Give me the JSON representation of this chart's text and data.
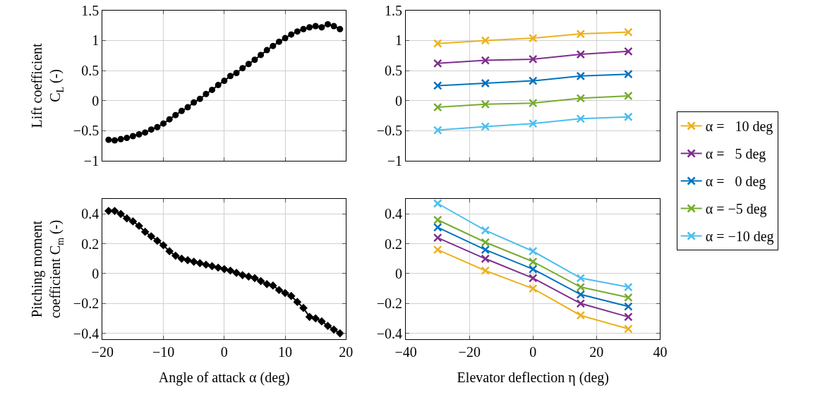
{
  "chart_data": [
    {
      "type": "line",
      "x": [
        -19,
        -18,
        -17,
        -16,
        -15,
        -14,
        -13,
        -12,
        -11,
        -10,
        -9,
        -8,
        -7,
        -6,
        -5,
        -4,
        -3,
        -2,
        -1,
        0,
        1,
        2,
        3,
        4,
        5,
        6,
        7,
        8,
        9,
        10,
        11,
        12,
        13,
        14,
        15,
        16,
        17,
        18,
        19
      ],
      "ylabel": "Lift coefficient\nC$_{L}$ (-)",
      "marker": "circle",
      "grid": true,
      "tick_labels": "y",
      "legend": false,
      "series": [
        {
          "color": "#000000",
          "values": [
            -0.65,
            -0.66,
            -0.64,
            -0.62,
            -0.59,
            -0.56,
            -0.53,
            -0.48,
            -0.44,
            -0.38,
            -0.31,
            -0.24,
            -0.17,
            -0.11,
            -0.03,
            0.03,
            0.11,
            0.18,
            0.26,
            0.33,
            0.41,
            0.46,
            0.54,
            0.61,
            0.68,
            0.76,
            0.84,
            0.91,
            0.98,
            1.04,
            1.1,
            1.15,
            1.19,
            1.22,
            1.24,
            1.22,
            1.27,
            1.24,
            1.19
          ]
        }
      ],
      "xlim": [
        -20,
        20
      ],
      "xticks": [
        {
          "value": -20,
          "label": "−20"
        },
        {
          "value": -10,
          "label": "−10"
        },
        0,
        10,
        20
      ],
      "ylim": [
        -1,
        1.5
      ],
      "yticks": [
        {
          "value": -1,
          "label": "−1"
        },
        {
          "value": -0.5,
          "label": "−0.5"
        },
        0,
        0.5,
        1,
        1.5
      ]
    },
    {
      "type": "line",
      "x": [
        -30,
        -15,
        0,
        15,
        30
      ],
      "marker": "cross",
      "grid": true,
      "tick_labels": "y",
      "legend": "right",
      "series": [
        {
          "name": "α =   10 deg",
          "color": "#edb120",
          "values": [
            0.95,
            1.0,
            1.04,
            1.11,
            1.14
          ]
        },
        {
          "name": "α =   5 deg",
          "color": "#7e2f8e",
          "values": [
            0.62,
            0.67,
            0.69,
            0.77,
            0.82
          ]
        },
        {
          "name": "α =   0 deg",
          "color": "#0072bd",
          "values": [
            0.25,
            0.29,
            0.33,
            0.41,
            0.44
          ]
        },
        {
          "name": "α = −5 deg",
          "color": "#77ac30",
          "values": [
            -0.11,
            -0.06,
            -0.04,
            0.04,
            0.08
          ]
        },
        {
          "name": "α = −10 deg",
          "color": "#4dbeee",
          "values": [
            -0.49,
            -0.43,
            -0.38,
            -0.3,
            -0.27
          ]
        }
      ],
      "xlim": [
        -40,
        40
      ],
      "xticks": [
        {
          "value": -40,
          "label": "−40"
        },
        {
          "value": -20,
          "label": "−20"
        },
        0,
        20,
        40
      ],
      "ylim": [
        -1,
        1.5
      ],
      "yticks": [
        {
          "value": -1,
          "label": "−1"
        },
        {
          "value": -0.5,
          "label": "−0.5"
        },
        0,
        0.5,
        1,
        1.5
      ]
    },
    {
      "type": "line",
      "x": [
        -19,
        -18,
        -17,
        -16,
        -15,
        -14,
        -13,
        -12,
        -11,
        -10,
        -9,
        -8,
        -7,
        -6,
        -5,
        -4,
        -3,
        -2,
        -1,
        0,
        1,
        2,
        3,
        4,
        5,
        6,
        7,
        8,
        9,
        10,
        11,
        12,
        13,
        14,
        15,
        16,
        17,
        18,
        19
      ],
      "xlabel": "Angle of attack α (deg)",
      "ylabel": "Pitching moment\ncoefficient C$_{m}$ (-)",
      "marker": "diamond",
      "grid": true,
      "legend": false,
      "series": [
        {
          "color": "#000000",
          "values": [
            0.42,
            0.42,
            0.4,
            0.37,
            0.35,
            0.32,
            0.28,
            0.25,
            0.22,
            0.19,
            0.15,
            0.12,
            0.1,
            0.09,
            0.08,
            0.07,
            0.06,
            0.05,
            0.04,
            0.03,
            0.02,
            0.005,
            -0.01,
            -0.02,
            -0.03,
            -0.05,
            -0.07,
            -0.08,
            -0.11,
            -0.13,
            -0.15,
            -0.19,
            -0.23,
            -0.29,
            -0.3,
            -0.32,
            -0.35,
            -0.375,
            -0.4
          ]
        }
      ],
      "xlim": [
        -20,
        20
      ],
      "xticks": [
        {
          "value": -20,
          "label": "−20"
        },
        {
          "value": -10,
          "label": "−10"
        },
        0,
        10,
        20
      ],
      "ylim": [
        -0.44,
        0.5
      ],
      "yticks": [
        {
          "value": -0.4,
          "label": "−0.4"
        },
        {
          "value": -0.2,
          "label": "−0.2"
        },
        0,
        0.2,
        0.4
      ]
    },
    {
      "type": "line",
      "x": [
        -30,
        -15,
        0,
        15,
        30
      ],
      "xlabel": "Elevator deflection η (deg)",
      "marker": "cross",
      "grid": true,
      "legend": "right",
      "series": [
        {
          "name": "α =   10 deg",
          "color": "#edb120",
          "values": [
            0.16,
            0.02,
            -0.1,
            -0.28,
            -0.37
          ]
        },
        {
          "name": "α =   5 deg",
          "color": "#7e2f8e",
          "values": [
            0.24,
            0.1,
            -0.03,
            -0.2,
            -0.29
          ]
        },
        {
          "name": "α =   0 deg",
          "color": "#0072bd",
          "values": [
            0.31,
            0.16,
            0.03,
            -0.14,
            -0.22
          ]
        },
        {
          "name": "α = −5 deg",
          "color": "#77ac30",
          "values": [
            0.36,
            0.21,
            0.08,
            -0.09,
            -0.16
          ]
        },
        {
          "name": "α = −10 deg",
          "color": "#4dbeee",
          "values": [
            0.47,
            0.29,
            0.15,
            -0.03,
            -0.09
          ]
        }
      ],
      "xlim": [
        -40,
        40
      ],
      "xticks": [
        {
          "value": -40,
          "label": "−40"
        },
        {
          "value": -20,
          "label": "−20"
        },
        0,
        20,
        40
      ],
      "ylim": [
        -0.44,
        0.5
      ],
      "yticks": [
        {
          "value": -0.4,
          "label": "−0.4"
        },
        {
          "value": -0.2,
          "label": "−0.2"
        },
        0,
        0.2,
        0.4
      ]
    }
  ]
}
